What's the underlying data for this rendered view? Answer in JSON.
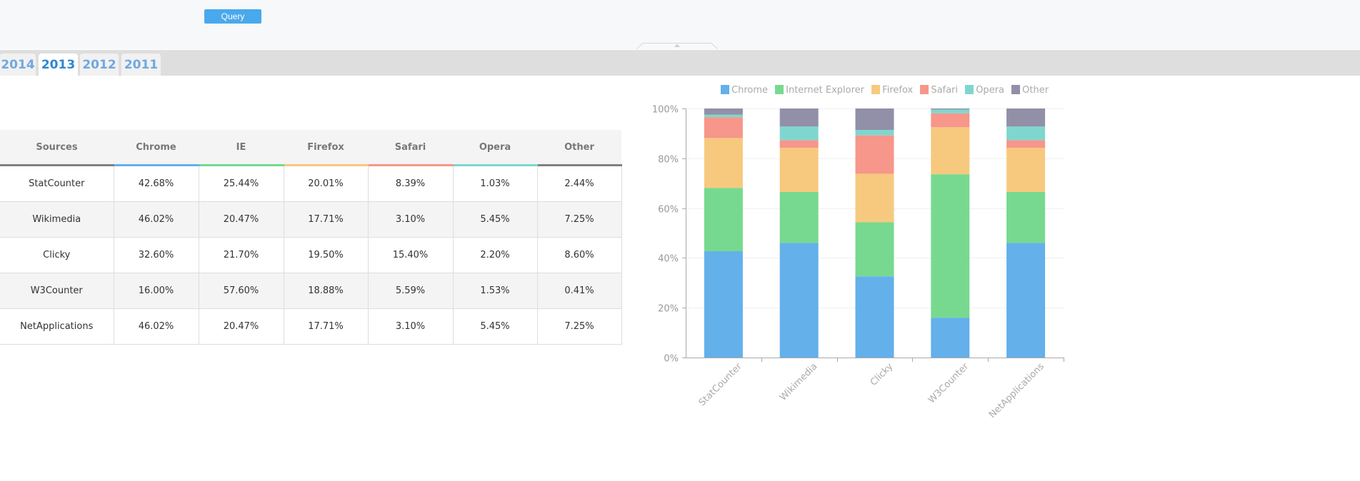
{
  "toolbar": {
    "query_label": "Query"
  },
  "tabs": [
    {
      "label": "2014",
      "active": false
    },
    {
      "label": "2013",
      "active": true
    },
    {
      "label": "2012",
      "active": false
    },
    {
      "label": "2011",
      "active": false
    }
  ],
  "table": {
    "headers": [
      "Sources",
      "Chrome",
      "IE",
      "Firefox",
      "Safari",
      "Opera",
      "Other"
    ],
    "header_colors": [
      "#808080",
      "#63b0eb",
      "#77d98f",
      "#f7c97e",
      "#f7968a",
      "#7fd6cf",
      "#808080"
    ],
    "rows": [
      [
        "StatCounter",
        "42.68%",
        "25.44%",
        "20.01%",
        "8.39%",
        "1.03%",
        "2.44%"
      ],
      [
        "Wikimedia",
        "46.02%",
        "20.47%",
        "17.71%",
        "3.10%",
        "5.45%",
        "7.25%"
      ],
      [
        "Clicky",
        "32.60%",
        "21.70%",
        "19.50%",
        "15.40%",
        "2.20%",
        "8.60%"
      ],
      [
        "W3Counter",
        "16.00%",
        "57.60%",
        "18.88%",
        "5.59%",
        "1.53%",
        "0.41%"
      ],
      [
        "NetApplications",
        "46.02%",
        "20.47%",
        "17.71%",
        "3.10%",
        "5.45%",
        "7.25%"
      ]
    ]
  },
  "chart_data": {
    "type": "bar",
    "stacked": "percent",
    "title": "",
    "xlabel": "",
    "ylabel": "",
    "categories": [
      "StatCounter",
      "Wikimedia",
      "Clicky",
      "W3Counter",
      "NetApplications"
    ],
    "series": [
      {
        "name": "Chrome",
        "color": "#63b0eb",
        "values": [
          42.68,
          46.02,
          32.6,
          16.0,
          46.02
        ]
      },
      {
        "name": "Internet Explorer",
        "color": "#77d98f",
        "values": [
          25.44,
          20.47,
          21.7,
          57.6,
          20.47
        ]
      },
      {
        "name": "Firefox",
        "color": "#f7c97e",
        "values": [
          20.01,
          17.71,
          19.5,
          18.88,
          17.71
        ]
      },
      {
        "name": "Safari",
        "color": "#f7968a",
        "values": [
          8.39,
          3.1,
          15.4,
          5.59,
          3.1
        ]
      },
      {
        "name": "Opera",
        "color": "#7fd6cf",
        "values": [
          1.03,
          5.45,
          2.2,
          1.53,
          5.45
        ]
      },
      {
        "name": "Other",
        "color": "#9190a8",
        "values": [
          2.44,
          7.25,
          8.6,
          0.41,
          7.25
        ]
      }
    ],
    "ylim": [
      0,
      100
    ],
    "yticks": [
      "0%",
      "20%",
      "40%",
      "60%",
      "80%",
      "100%"
    ],
    "grid": true,
    "legend": "top"
  }
}
